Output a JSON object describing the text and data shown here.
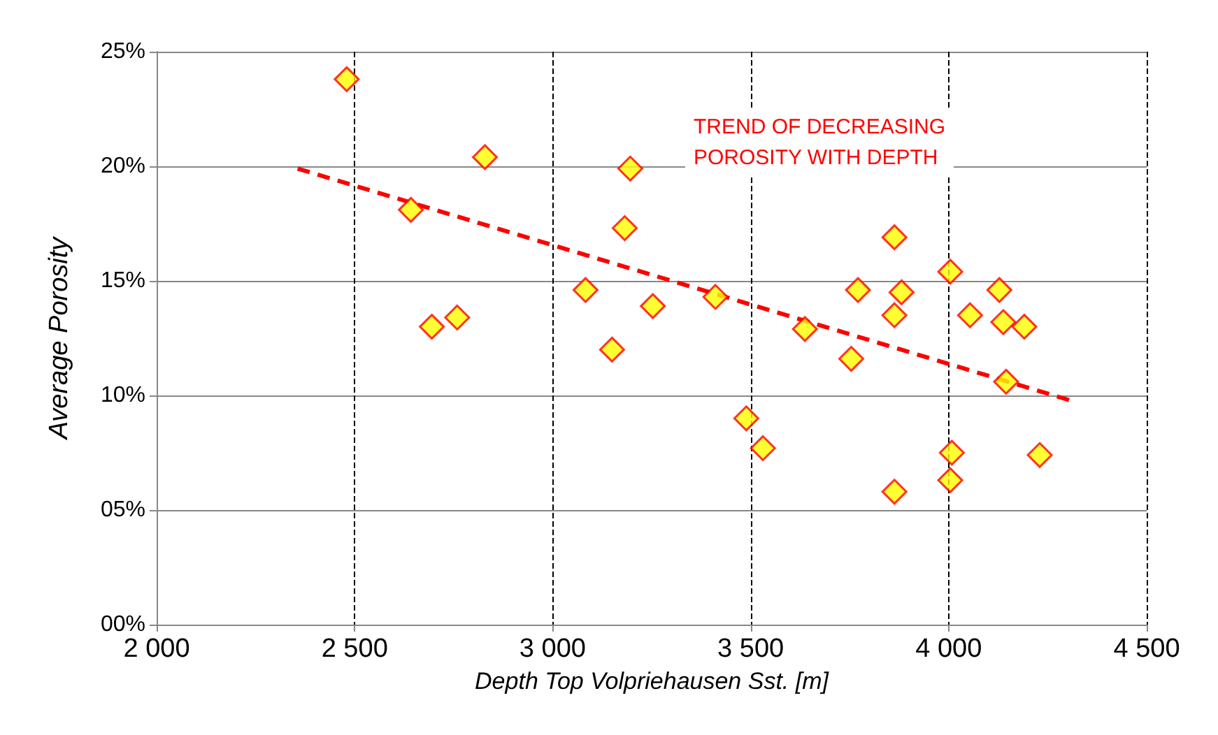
{
  "chart_data": {
    "type": "scatter",
    "xlabel": "Depth Top Volpriehausen Sst. [m]",
    "ylabel": "Average Porosity",
    "xlim": [
      2000,
      4500
    ],
    "xticks": [
      {
        "value": 2000,
        "label": "2 000"
      },
      {
        "value": 2500,
        "label": "2 500"
      },
      {
        "value": 3000,
        "label": "3 000"
      },
      {
        "value": 3500,
        "label": "3 500"
      },
      {
        "value": 4000,
        "label": "4 000"
      },
      {
        "value": 4500,
        "label": "4 500"
      }
    ],
    "ylim": [
      0,
      25
    ],
    "yticks": [
      {
        "value": 0,
        "label": "00%"
      },
      {
        "value": 5,
        "label": "05%"
      },
      {
        "value": 10,
        "label": "10%"
      },
      {
        "value": 15,
        "label": "15%"
      },
      {
        "value": 20,
        "label": "20%"
      },
      {
        "value": 25,
        "label": "25%"
      }
    ],
    "grid": true,
    "marker": "diamond",
    "series": [
      {
        "color": "#ffff00",
        "x": [
          2480,
          2642,
          2695,
          2759,
          2829,
          3083,
          3150,
          3196,
          3182,
          3253,
          3411,
          3489,
          3531,
          3637,
          3754,
          3771,
          3863,
          3863,
          3881,
          3863,
          4004,
          4008,
          4004,
          4054,
          4128,
          4138,
          4191,
          4145,
          4230
        ],
        "values": [
          23.8,
          18.1,
          13.0,
          13.4,
          20.4,
          14.6,
          12.0,
          19.9,
          17.3,
          13.9,
          14.3,
          9.0,
          7.7,
          12.9,
          11.6,
          14.6,
          16.9,
          13.5,
          14.5,
          5.8,
          15.4,
          7.5,
          6.3,
          13.5,
          14.6,
          13.2,
          13.0,
          10.6,
          7.4
        ]
      },
      {
        "type": "line",
        "color": "#ff0000",
        "line_style": "dashed",
        "marker": "none",
        "x": [
          2356,
          4304
        ],
        "values": [
          19.9,
          9.8
        ]
      }
    ],
    "annotations": [
      "TREND OF DECREASING\nPOROSITY WITH DEPTH"
    ]
  }
}
